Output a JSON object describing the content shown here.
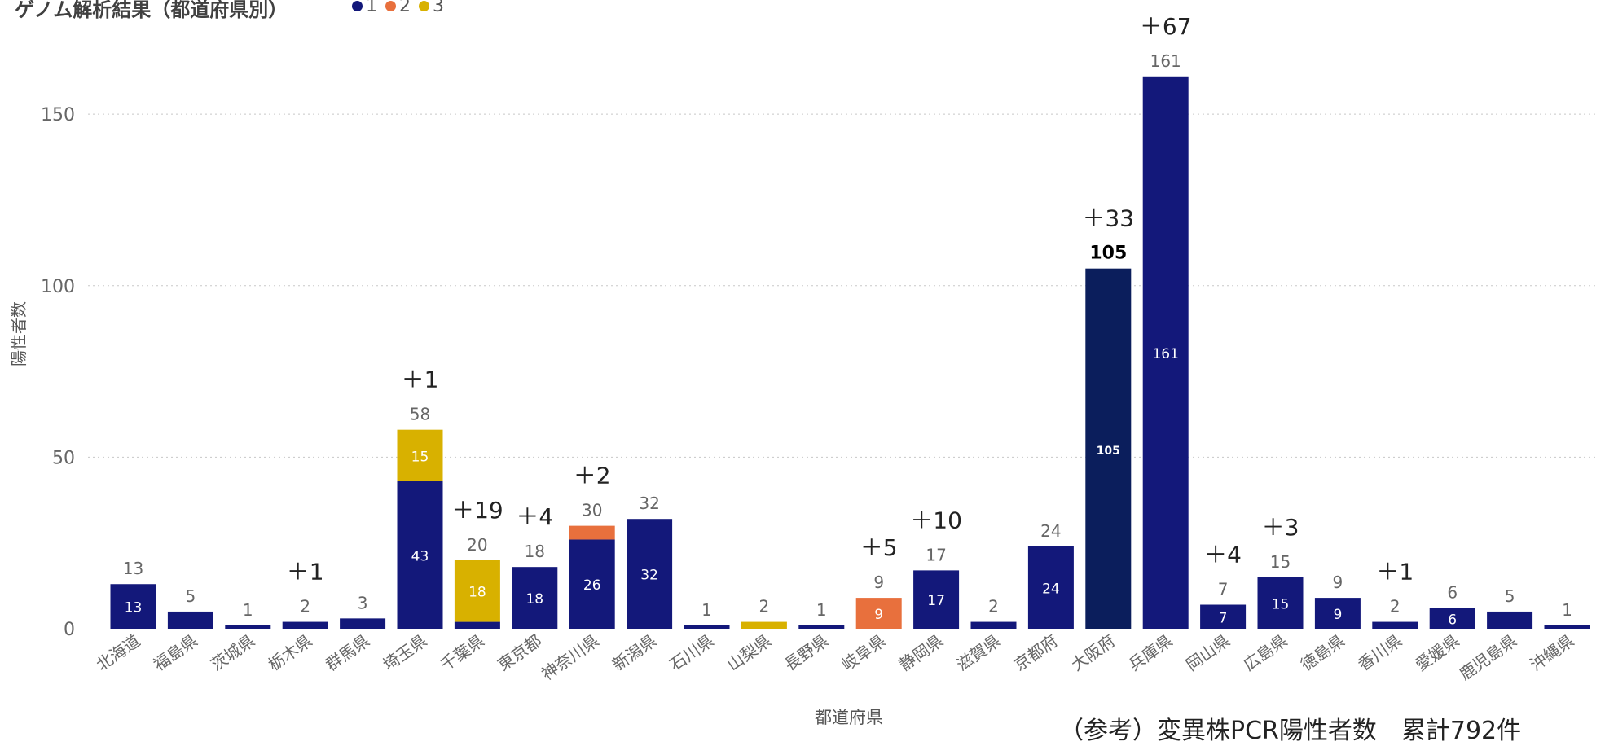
{
  "chart_data": {
    "type": "bar",
    "stacked": true,
    "title": "ゲノム解析結果（都道府県別）",
    "legend": [
      "1",
      "2",
      "3"
    ],
    "legend_position": "top",
    "colors": {
      "1": "#13187a",
      "2": "#e8703d",
      "3": "#d8b100",
      "dark": "#0b1e5c"
    },
    "xlabel": "都道府県",
    "ylabel": "陽性者数",
    "ylim": [
      0,
      160
    ],
    "yticks": [
      0,
      50,
      100,
      150
    ],
    "grid": true,
    "categories": [
      "北海道",
      "福島県",
      "茨城県",
      "栃木県",
      "群馬県",
      "埼玉県",
      "千葉県",
      "東京都",
      "神奈川県",
      "新潟県",
      "石川県",
      "山梨県",
      "長野県",
      "岐阜県",
      "静岡県",
      "滋賀県",
      "京都府",
      "大阪府",
      "兵庫県",
      "岡山県",
      "広島県",
      "徳島県",
      "香川県",
      "愛媛県",
      "鹿児島県",
      "沖縄県"
    ],
    "series": [
      {
        "name": "1",
        "values": [
          13,
          5,
          1,
          2,
          3,
          43,
          2,
          18,
          26,
          32,
          1,
          0,
          1,
          0,
          17,
          2,
          24,
          105,
          161,
          7,
          15,
          9,
          2,
          6,
          5,
          1
        ]
      },
      {
        "name": "2",
        "values": [
          0,
          0,
          0,
          0,
          0,
          0,
          0,
          0,
          4,
          0,
          0,
          0,
          0,
          9,
          0,
          0,
          0,
          0,
          0,
          0,
          0,
          0,
          0,
          0,
          0,
          0
        ]
      },
      {
        "name": "3",
        "values": [
          0,
          0,
          0,
          0,
          0,
          15,
          18,
          0,
          0,
          0,
          0,
          2,
          0,
          0,
          0,
          0,
          0,
          0,
          0,
          0,
          0,
          0,
          0,
          0,
          0,
          0
        ]
      }
    ],
    "totals": [
      13,
      5,
      1,
      2,
      3,
      58,
      20,
      18,
      30,
      32,
      1,
      2,
      1,
      9,
      17,
      2,
      24,
      105,
      161,
      7,
      15,
      9,
      2,
      6,
      5,
      1
    ],
    "inner_labels": [
      {
        "i": 0,
        "series": "1",
        "text": "13"
      },
      {
        "i": 5,
        "series": "1",
        "text": "43"
      },
      {
        "i": 5,
        "series": "3",
        "text": "15"
      },
      {
        "i": 6,
        "series": "3",
        "text": "18"
      },
      {
        "i": 7,
        "series": "1",
        "text": "18"
      },
      {
        "i": 8,
        "series": "1",
        "text": "26"
      },
      {
        "i": 9,
        "series": "1",
        "text": "32"
      },
      {
        "i": 13,
        "series": "2",
        "text": "9"
      },
      {
        "i": 14,
        "series": "1",
        "text": "17"
      },
      {
        "i": 16,
        "series": "1",
        "text": "24"
      },
      {
        "i": 17,
        "series": "1",
        "text": "105"
      },
      {
        "i": 18,
        "series": "1",
        "text": "161"
      },
      {
        "i": 19,
        "series": "1",
        "text": "7"
      },
      {
        "i": 20,
        "series": "1",
        "text": "15"
      },
      {
        "i": 21,
        "series": "1",
        "text": "9"
      },
      {
        "i": 23,
        "series": "1",
        "text": "6"
      }
    ],
    "highlighted_bar": 17,
    "increments": [
      {
        "i": 3,
        "text": "＋1"
      },
      {
        "i": 5,
        "text": "＋1"
      },
      {
        "i": 6,
        "text": "＋19"
      },
      {
        "i": 7,
        "text": "＋4"
      },
      {
        "i": 8,
        "text": "＋2"
      },
      {
        "i": 13,
        "text": "＋5"
      },
      {
        "i": 14,
        "text": "＋10"
      },
      {
        "i": 17,
        "text": "＋33"
      },
      {
        "i": 18,
        "text": "＋67"
      },
      {
        "i": 19,
        "text": "＋4"
      },
      {
        "i": 20,
        "text": "＋3"
      },
      {
        "i": 22,
        "text": "＋1"
      }
    ]
  },
  "footnote": "（参考）変異株PCR陽性者数　累計792件"
}
